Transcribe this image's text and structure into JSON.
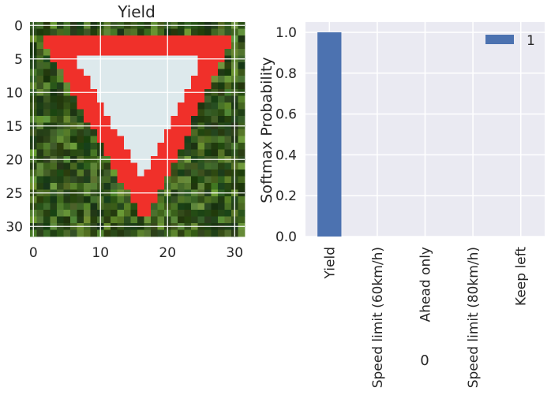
{
  "chart_data": [
    {
      "type": "image",
      "title": "Yield",
      "image_size": [
        32,
        32
      ],
      "xticks": [
        0,
        10,
        20,
        30
      ],
      "yticks": [
        0,
        5,
        10,
        15,
        20,
        25,
        30
      ],
      "grid": true,
      "colors": {
        "foliage_dark": "#1e3a12",
        "foliage_light": "#6f9a3a",
        "sign_red": "#f0302a",
        "sign_white": "#dde9ec"
      }
    },
    {
      "type": "bar",
      "categories": [
        "Yield",
        "Speed limit (60km/h)",
        "Ahead only",
        "Speed limit (80km/h)",
        "Keep left"
      ],
      "series": [
        {
          "name": "1",
          "values": [
            1.0,
            0.0,
            0.0,
            0.0,
            0.0
          ],
          "color": "#4c72b0"
        }
      ],
      "xlabel": "0",
      "ylabel": "Softmax Probability",
      "ylim": [
        0,
        1.05
      ],
      "yticks": [
        0.0,
        0.2,
        0.4,
        0.6,
        0.8,
        1.0
      ],
      "grid": true,
      "legend": "top-right",
      "background": "#eaeaf2"
    }
  ]
}
